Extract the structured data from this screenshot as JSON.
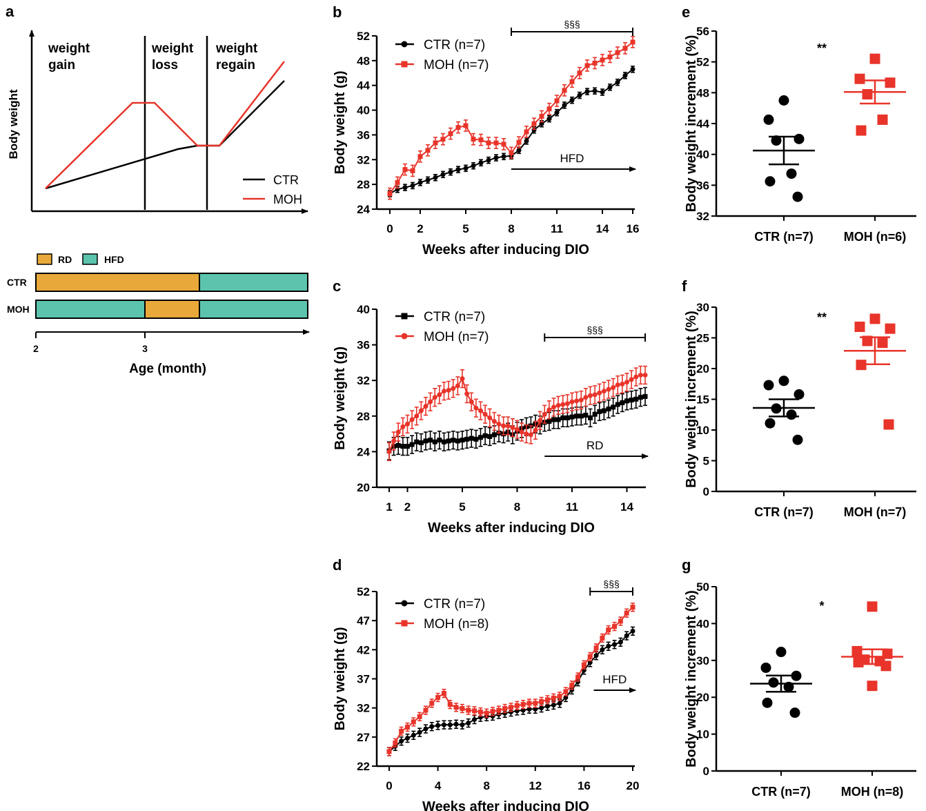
{
  "colors": {
    "ctr": "#000000",
    "moh": "#e8342a",
    "rd": "#e8a93a",
    "hfd": "#5cc4ad"
  },
  "panels": {
    "a": "a",
    "b": "b",
    "c": "c",
    "d": "d",
    "e": "e",
    "f": "f",
    "g": "g"
  },
  "schematic": {
    "ylabel": "Body weight",
    "phases": [
      "weight gain",
      "weight loss",
      "weight regain"
    ],
    "legend": [
      "CTR",
      "MOH"
    ],
    "diet_legend": [
      "RD",
      "HFD"
    ],
    "rows": [
      {
        "label": "CTR",
        "segments": [
          {
            "diet": "RD",
            "from": 2,
            "to": 3.5
          },
          {
            "diet": "HFD",
            "from": 3.5,
            "to": 5
          }
        ]
      },
      {
        "label": "MOH",
        "segments": [
          {
            "diet": "HFD",
            "from": 2,
            "to": 3
          },
          {
            "diet": "RD",
            "from": 3,
            "to": 3.5
          },
          {
            "diet": "HFD",
            "from": 3.5,
            "to": 5
          }
        ]
      }
    ],
    "age_ticks": [
      "2",
      "3"
    ],
    "xlabel": "Age (month)"
  },
  "chart_data": [
    {
      "panel": "b",
      "type": "line",
      "xlabel": "Weeks after inducing DIO",
      "ylabel": "Body weight (g)",
      "xlim": [
        0,
        16
      ],
      "ylim": [
        24,
        52
      ],
      "xticks": [
        0,
        2,
        5,
        8,
        11,
        14,
        16
      ],
      "yticks": [
        24,
        28,
        32,
        36,
        40,
        44,
        48,
        52
      ],
      "annotation": "§§§",
      "bracket": [
        8,
        16
      ],
      "arrow": {
        "label": "HFD",
        "from": 8,
        "to": 16
      },
      "series": [
        {
          "name": "CTR (n=7)",
          "color": "#000000",
          "marker": "circle",
          "x": [
            0,
            0.5,
            1,
            1.5,
            2,
            2.5,
            3,
            3.5,
            4,
            4.5,
            5,
            5.5,
            6,
            6.5,
            7,
            7.5,
            8,
            8.5,
            9,
            9.5,
            10,
            10.5,
            11,
            11.5,
            12,
            12.5,
            13,
            13.5,
            14,
            14.5,
            15,
            15.5,
            16
          ],
          "y": [
            26.5,
            27.2,
            27.5,
            27.8,
            28.3,
            28.7,
            29.1,
            29.6,
            30.0,
            30.4,
            30.6,
            31.0,
            31.5,
            31.9,
            32.3,
            32.5,
            32.6,
            33.5,
            35.0,
            36.8,
            37.8,
            38.6,
            39.6,
            40.8,
            41.6,
            42.4,
            43.0,
            43.1,
            42.9,
            43.7,
            44.5,
            45.6,
            46.6
          ],
          "err": 0.5
        },
        {
          "name": "MOH (n=7)",
          "color": "#e8342a",
          "marker": "square",
          "x": [
            0,
            0.5,
            1,
            1.5,
            2,
            2.5,
            3,
            3.5,
            4,
            4.5,
            5,
            5.5,
            6,
            6.5,
            7,
            7.5,
            8,
            8.5,
            9,
            9.5,
            10,
            10.5,
            11,
            11.5,
            12,
            12.5,
            13,
            13.5,
            14,
            14.5,
            15,
            15.5,
            16
          ],
          "y": [
            26.5,
            28.3,
            30.4,
            30.2,
            32.5,
            33.5,
            34.7,
            35.3,
            36.2,
            37.2,
            37.5,
            35.3,
            35.2,
            34.7,
            34.7,
            34.5,
            33.1,
            34.8,
            36.5,
            37.8,
            39.0,
            40.2,
            41.5,
            43.2,
            44.6,
            46.0,
            47.2,
            47.6,
            48.1,
            48.6,
            49.3,
            50.0,
            51.0
          ],
          "err": 0.9
        }
      ]
    },
    {
      "panel": "c",
      "type": "line",
      "xlabel": "Weeks after inducing DIO",
      "ylabel": "Body weight (g)",
      "xlim": [
        1,
        15
      ],
      "ylim": [
        20,
        40
      ],
      "xticks": [
        1,
        2,
        5,
        8,
        11,
        14
      ],
      "yticks": [
        20,
        24,
        28,
        32,
        36,
        40
      ],
      "annotation": "§§§",
      "bracket": [
        9.5,
        15
      ],
      "arrow": {
        "label": "RD",
        "from": 9.5,
        "to": 15
      },
      "series": [
        {
          "name": "CTR (n=7)",
          "color": "#000000",
          "marker": "square",
          "x": [
            1,
            1.25,
            1.5,
            1.75,
            2,
            2.25,
            2.5,
            2.75,
            3,
            3.25,
            3.5,
            3.75,
            4,
            4.25,
            4.5,
            4.75,
            5,
            5.25,
            5.5,
            5.75,
            6,
            6.25,
            6.5,
            6.75,
            7,
            7.25,
            7.5,
            7.75,
            8,
            8.25,
            8.5,
            8.75,
            9,
            9.25,
            9.5,
            9.75,
            10,
            10.25,
            10.5,
            10.75,
            11,
            11.25,
            11.5,
            11.75,
            12,
            12.25,
            12.5,
            12.75,
            13,
            13.25,
            13.5,
            13.75,
            14,
            14.25,
            14.5,
            14.75,
            15
          ],
          "y": [
            24.1,
            24.6,
            24.7,
            24.6,
            24.6,
            24.8,
            25.1,
            25.0,
            25.2,
            25.3,
            25.1,
            25.3,
            25.1,
            25.2,
            25.3,
            25.2,
            25.3,
            25.4,
            25.5,
            25.4,
            25.6,
            25.8,
            25.7,
            25.9,
            26.1,
            26.0,
            26.2,
            25.9,
            26.3,
            26.6,
            26.8,
            26.9,
            27.1,
            27.0,
            27.3,
            27.4,
            27.6,
            27.6,
            27.8,
            27.8,
            27.9,
            28.0,
            28.0,
            28.1,
            27.8,
            28.2,
            28.5,
            28.6,
            28.8,
            29.0,
            29.3,
            29.5,
            29.7,
            29.8,
            29.9,
            30.1,
            30.2
          ],
          "err": 1.0
        },
        {
          "name": "MOH (n=7)",
          "color": "#e8342a",
          "marker": "circle",
          "x": [
            1,
            1.25,
            1.5,
            1.75,
            2,
            2.25,
            2.5,
            2.75,
            3,
            3.25,
            3.5,
            3.75,
            4,
            4.25,
            4.5,
            4.75,
            5,
            5.25,
            5.5,
            5.75,
            6,
            6.25,
            6.5,
            6.75,
            7,
            7.25,
            7.5,
            7.75,
            8,
            8.25,
            8.5,
            8.75,
            9,
            9.25,
            9.5,
            9.75,
            10,
            10.25,
            10.5,
            10.75,
            11,
            11.25,
            11.5,
            11.75,
            12,
            12.25,
            12.5,
            12.75,
            13,
            13.25,
            13.5,
            13.75,
            14,
            14.25,
            14.5,
            14.75,
            15
          ],
          "y": [
            24.0,
            25.2,
            26.2,
            26.8,
            27.1,
            27.6,
            28.0,
            28.6,
            29.1,
            29.6,
            30.1,
            30.4,
            30.8,
            30.9,
            31.1,
            31.4,
            32.2,
            30.5,
            29.6,
            28.9,
            28.6,
            28.2,
            27.8,
            27.4,
            27.1,
            26.9,
            26.9,
            26.7,
            26.5,
            26.2,
            26.0,
            25.9,
            26.4,
            27.5,
            28.2,
            28.7,
            29.0,
            29.2,
            29.3,
            29.4,
            29.6,
            29.7,
            29.8,
            30.1,
            30.3,
            30.4,
            30.6,
            30.8,
            31.0,
            31.2,
            31.5,
            31.6,
            31.8,
            32.1,
            32.4,
            32.6,
            32.6
          ],
          "err": 1.0
        }
      ]
    },
    {
      "panel": "d",
      "type": "line",
      "xlabel": "Weeks after inducing DIO",
      "ylabel": "Body weight (g)",
      "xlim": [
        0,
        20
      ],
      "ylim": [
        22,
        52
      ],
      "xticks": [
        0,
        4,
        8,
        12,
        16,
        20
      ],
      "yticks": [
        22,
        27,
        32,
        37,
        42,
        47,
        52
      ],
      "annotation": "§§§",
      "bracket": [
        16.5,
        20
      ],
      "arrow": {
        "label": "HFD",
        "from": 16.5,
        "to": 20
      },
      "series": [
        {
          "name": "CTR (n=7)",
          "color": "#000000",
          "marker": "circle",
          "x": [
            0,
            0.5,
            1,
            1.5,
            2,
            2.5,
            3,
            3.5,
            4,
            4.5,
            5,
            5.5,
            6,
            6.5,
            7,
            7.5,
            8,
            8.5,
            9,
            9.5,
            10,
            10.5,
            11,
            11.5,
            12,
            12.5,
            13,
            13.5,
            14,
            14.5,
            15,
            15.5,
            16,
            16.5,
            17,
            17.5,
            18,
            18.5,
            19,
            19.5,
            20
          ],
          "y": [
            24.5,
            25.4,
            26.3,
            26.8,
            27.3,
            27.8,
            28.4,
            28.8,
            29.0,
            29.1,
            29.1,
            29.2,
            29.1,
            29.4,
            30.0,
            30.4,
            30.5,
            30.6,
            30.9,
            31.1,
            31.3,
            31.5,
            31.6,
            31.8,
            31.8,
            32.0,
            32.3,
            32.5,
            32.8,
            33.8,
            35.1,
            36.5,
            38.5,
            39.8,
            41.0,
            42.0,
            42.6,
            42.9,
            43.3,
            44.4,
            45.2
          ],
          "err": 0.7
        },
        {
          "name": "MOH (n=8)",
          "color": "#e8342a",
          "marker": "square",
          "x": [
            0,
            0.5,
            1,
            1.5,
            2,
            2.5,
            3,
            3.5,
            4,
            4.5,
            5,
            5.5,
            6,
            6.5,
            7,
            7.5,
            8,
            8.5,
            9,
            9.5,
            10,
            10.5,
            11,
            11.5,
            12,
            12.5,
            13,
            13.5,
            14,
            14.5,
            15,
            15.5,
            16,
            16.5,
            17,
            17.5,
            18,
            18.5,
            19,
            19.5,
            20
          ],
          "y": [
            24.5,
            26.0,
            28.0,
            28.7,
            29.6,
            30.5,
            31.6,
            32.8,
            33.8,
            34.5,
            32.6,
            32.1,
            31.9,
            31.6,
            31.5,
            31.3,
            31.1,
            31.4,
            31.6,
            31.9,
            32.1,
            32.4,
            32.6,
            32.8,
            32.8,
            33.1,
            33.4,
            33.7,
            34.0,
            34.8,
            35.9,
            37.3,
            39.4,
            40.8,
            42.3,
            44.0,
            45.4,
            46.0,
            46.9,
            48.3,
            49.3
          ],
          "err": 0.7
        }
      ]
    },
    {
      "panel": "e",
      "type": "scatter",
      "ylabel": "Body weight increment (%)",
      "ylim": [
        32,
        56
      ],
      "yticks": [
        32,
        36,
        40,
        44,
        48,
        52,
        56
      ],
      "categories": [
        "CTR (n=7)",
        "MOH (n=6)"
      ],
      "annotation": "**",
      "groups": [
        {
          "values": [
            47.0,
            44.5,
            42.0,
            41.8,
            37.5,
            36.5,
            34.5
          ],
          "mean": 40.5,
          "sem": 1.8
        },
        {
          "values": [
            52.4,
            49.8,
            49.3,
            47.8,
            44.5,
            43.1
          ],
          "mean": 48.1,
          "sem": 1.5
        }
      ]
    },
    {
      "panel": "f",
      "type": "scatter",
      "ylabel": "Body weight increment (%)",
      "ylim": [
        0,
        30
      ],
      "yticks": [
        0,
        5,
        10,
        15,
        20,
        25,
        30
      ],
      "categories": [
        "CTR (n=7)",
        "MOH (n=7)"
      ],
      "annotation": "**",
      "groups": [
        {
          "values": [
            18.0,
            17.3,
            15.8,
            13.5,
            12.5,
            11.1,
            8.4
          ],
          "mean": 13.6,
          "sem": 1.4
        },
        {
          "values": [
            28.1,
            26.8,
            26.5,
            24.5,
            24.2,
            20.6,
            10.9
          ],
          "mean": 22.9,
          "sem": 2.2
        }
      ]
    },
    {
      "panel": "g",
      "type": "scatter",
      "ylabel": "Body weight increment (%)",
      "ylim": [
        0,
        50
      ],
      "yticks": [
        0,
        10,
        20,
        30,
        40,
        50
      ],
      "categories": [
        "CTR (n=7)",
        "MOH (n=8)"
      ],
      "annotation": "*",
      "groups": [
        {
          "values": [
            32.3,
            28.0,
            25.8,
            24.0,
            22.8,
            18.5,
            15.8
          ],
          "mean": 23.7,
          "sem": 2.2
        },
        {
          "values": [
            44.6,
            32.5,
            31.8,
            30.2,
            29.8,
            29.5,
            28.5,
            23.1
          ],
          "mean": 31.0,
          "sem": 2.0
        }
      ]
    }
  ]
}
